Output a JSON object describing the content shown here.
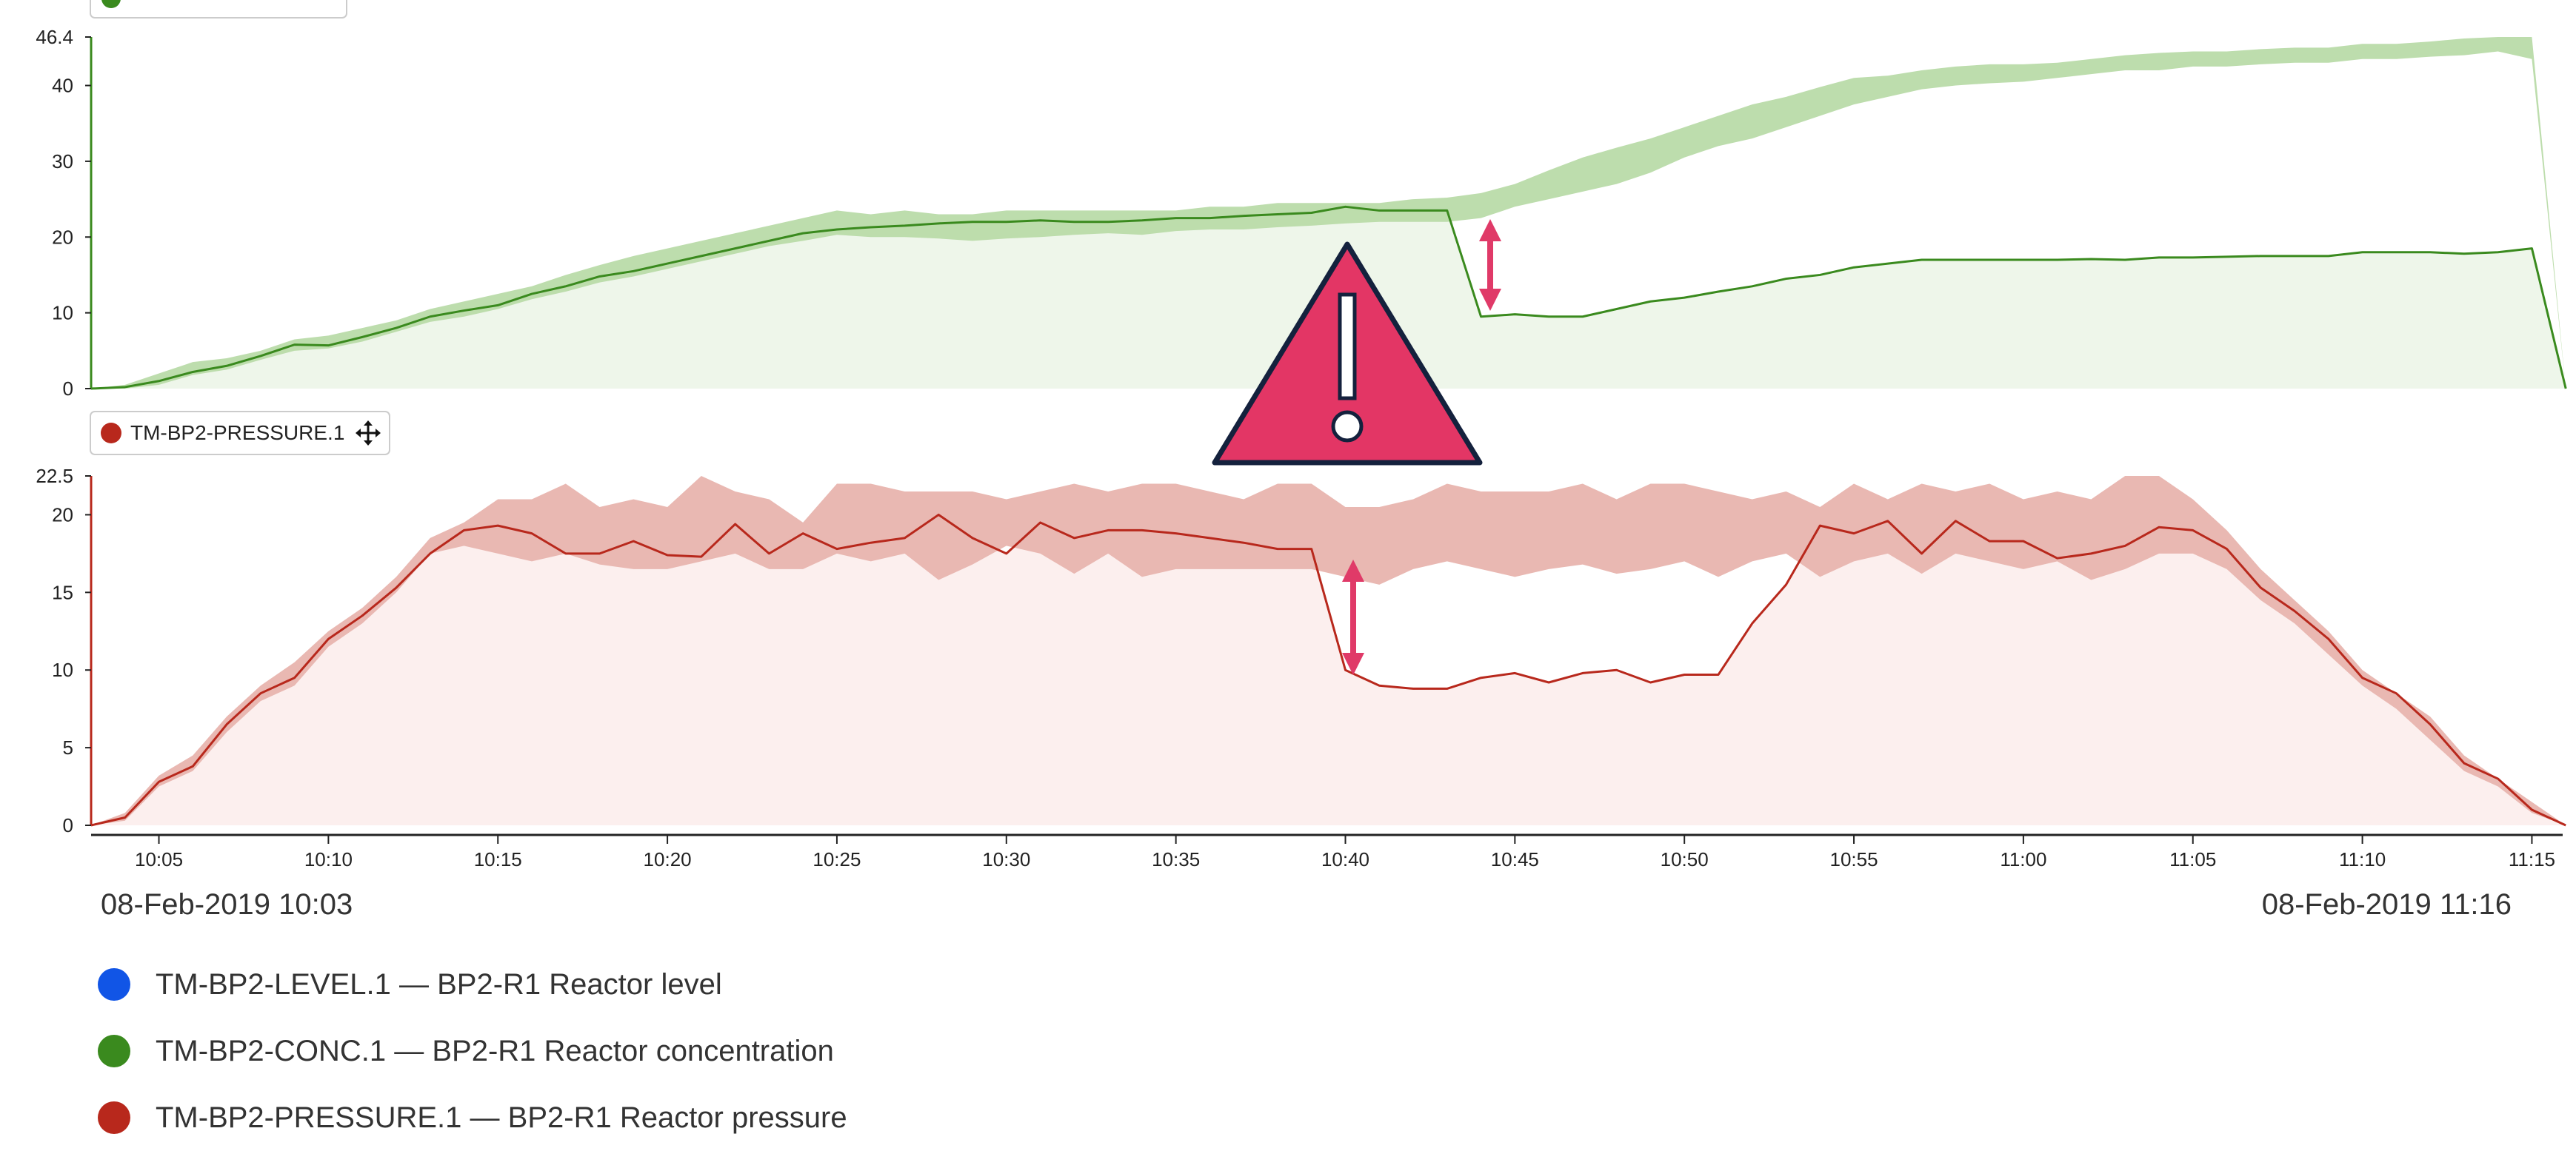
{
  "time_range": {
    "start": "08-Feb-2019 10:03",
    "end": "08-Feb-2019 11:16"
  },
  "legend": [
    {
      "label": "TM-BP2-LEVEL.1 — BP2-R1 Reactor level",
      "color": "#1155e6"
    },
    {
      "label": "TM-BP2-CONC.1 — BP2-R1 Reactor concentration",
      "color": "#3a8a1e"
    },
    {
      "label": "TM-BP2-PRESSURE.1 — BP2-R1 Reactor pressure",
      "color": "#b8281c"
    }
  ],
  "tags": {
    "pressure": "TM-BP2-PRESSURE.1"
  },
  "alert_icon": "warning-triangle-icon",
  "chart_data": [
    {
      "type": "area",
      "name": "concentration",
      "ylim": [
        0,
        46.4
      ],
      "yticks": [
        0,
        10,
        20,
        30,
        40,
        46.4
      ],
      "colors": {
        "line": "#3a8a1e",
        "band": "#b9dba9",
        "fill": "#eef6ea"
      },
      "x": [
        "10:03",
        "10:04",
        "10:05",
        "10:06",
        "10:07",
        "10:08",
        "10:09",
        "10:10",
        "10:11",
        "10:12",
        "10:13",
        "10:14",
        "10:15",
        "10:16",
        "10:17",
        "10:18",
        "10:19",
        "10:20",
        "10:21",
        "10:22",
        "10:23",
        "10:24",
        "10:25",
        "10:26",
        "10:27",
        "10:28",
        "10:29",
        "10:30",
        "10:31",
        "10:32",
        "10:33",
        "10:34",
        "10:35",
        "10:36",
        "10:37",
        "10:38",
        "10:39",
        "10:40",
        "10:41",
        "10:42",
        "10:43",
        "10:44",
        "10:45",
        "10:46",
        "10:47",
        "10:48",
        "10:49",
        "10:50",
        "10:51",
        "10:52",
        "10:53",
        "10:54",
        "10:55",
        "10:56",
        "10:57",
        "10:58",
        "10:59",
        "11:00",
        "11:01",
        "11:02",
        "11:03",
        "11:04",
        "11:05",
        "11:06",
        "11:07",
        "11:08",
        "11:09",
        "11:10",
        "11:11",
        "11:12",
        "11:13",
        "11:14",
        "11:15",
        "11:16"
      ],
      "values": [
        0,
        0.2,
        1,
        2.2,
        3,
        4.3,
        5.8,
        5.7,
        6.8,
        8,
        9.5,
        10.3,
        11,
        12.5,
        13.5,
        14.8,
        15.5,
        16.5,
        17.5,
        18.5,
        19.5,
        20.5,
        21,
        21.3,
        21.5,
        21.8,
        22,
        22,
        22.2,
        22,
        22,
        22.2,
        22.5,
        22.5,
        22.8,
        23,
        23.2,
        24,
        23.5,
        23.5,
        23.5,
        9.5,
        9.8,
        9.5,
        9.5,
        10.5,
        11.5,
        12,
        12.8,
        13.5,
        14.5,
        15,
        16,
        16.5,
        17,
        17,
        17,
        17,
        17,
        17.1,
        17,
        17.3,
        17.3,
        17.4,
        17.5,
        17.5,
        17.5,
        18,
        18,
        18,
        17.8,
        18,
        18.5,
        0
      ],
      "band_upper": [
        0,
        0.5,
        2,
        3.5,
        4,
        5,
        6.5,
        7,
        8,
        9,
        10.5,
        11.5,
        12.5,
        13.5,
        15,
        16.3,
        17.5,
        18.5,
        19.5,
        20.5,
        21.5,
        22.5,
        23.5,
        23,
        23.5,
        23,
        23,
        23.5,
        23.5,
        23.5,
        23.5,
        23.5,
        23.5,
        24,
        24,
        24.5,
        24.5,
        24.5,
        24.5,
        25,
        25.2,
        25.8,
        27,
        28.8,
        30.5,
        31.8,
        33,
        34.5,
        36,
        37.5,
        38.5,
        39.8,
        41,
        41.3,
        42,
        42.5,
        42.8,
        42.8,
        43,
        43.5,
        44,
        44.3,
        44.5,
        44.5,
        44.8,
        45,
        45,
        45.5,
        45.5,
        45.8,
        46.2,
        46.4,
        46.4,
        0
      ],
      "band_lower": [
        0,
        0,
        0.5,
        1.8,
        2.5,
        3.8,
        5,
        5.3,
        6.2,
        7.5,
        8.8,
        9.5,
        10.5,
        11.8,
        12.8,
        14,
        14.8,
        15.8,
        16.8,
        17.8,
        18.8,
        19.5,
        20.3,
        20,
        20,
        19.8,
        19.5,
        19.8,
        20,
        20.3,
        20.5,
        20.3,
        20.8,
        21,
        21,
        21.3,
        21.5,
        21.8,
        22,
        22,
        22,
        22.5,
        24,
        25,
        26,
        27,
        28.5,
        30.5,
        32,
        33,
        34.5,
        36,
        37.5,
        38.5,
        39.5,
        40,
        40.3,
        40.5,
        41,
        41.5,
        42,
        42,
        42.5,
        42.5,
        42.8,
        43,
        43,
        43.5,
        43.5,
        43.8,
        44,
        44.5,
        43.5,
        0
      ]
    },
    {
      "type": "area",
      "name": "pressure",
      "ylim": [
        0,
        22.5
      ],
      "yticks": [
        0,
        5,
        10,
        15,
        20,
        22.5
      ],
      "colors": {
        "line": "#b8281c",
        "band": "#e8b4ae",
        "fill": "#fcefee"
      },
      "x": [
        "10:03",
        "10:04",
        "10:05",
        "10:06",
        "10:07",
        "10:08",
        "10:09",
        "10:10",
        "10:11",
        "10:12",
        "10:13",
        "10:14",
        "10:15",
        "10:16",
        "10:17",
        "10:18",
        "10:19",
        "10:20",
        "10:21",
        "10:22",
        "10:23",
        "10:24",
        "10:25",
        "10:26",
        "10:27",
        "10:28",
        "10:29",
        "10:30",
        "10:31",
        "10:32",
        "10:33",
        "10:34",
        "10:35",
        "10:36",
        "10:37",
        "10:38",
        "10:39",
        "10:40",
        "10:41",
        "10:42",
        "10:43",
        "10:44",
        "10:45",
        "10:46",
        "10:47",
        "10:48",
        "10:49",
        "10:50",
        "10:51",
        "10:52",
        "10:53",
        "10:54",
        "10:55",
        "10:56",
        "10:57",
        "10:58",
        "10:59",
        "11:00",
        "11:01",
        "11:02",
        "11:03",
        "11:04",
        "11:05",
        "11:06",
        "11:07",
        "11:08",
        "11:09",
        "11:10",
        "11:11",
        "11:12",
        "11:13",
        "11:14",
        "11:15",
        "11:16"
      ],
      "values": [
        0,
        0.5,
        2.8,
        3.8,
        6.5,
        8.5,
        9.5,
        12,
        13.5,
        15.3,
        17.5,
        19,
        19.3,
        18.8,
        17.5,
        17.5,
        18.3,
        17.4,
        17.3,
        19.4,
        17.5,
        18.8,
        17.8,
        18.2,
        18.5,
        20,
        18.5,
        17.5,
        19.5,
        18.5,
        19,
        19,
        18.8,
        18.5,
        18.2,
        17.8,
        17.8,
        10,
        9,
        8.8,
        8.8,
        9.5,
        9.8,
        9.2,
        9.8,
        10,
        9.2,
        9.7,
        9.7,
        13,
        15.5,
        19.3,
        18.8,
        19.6,
        17.5,
        19.6,
        18.3,
        18.3,
        17.2,
        17.5,
        18,
        19.2,
        19,
        17.8,
        15.3,
        13.8,
        12,
        9.5,
        8.5,
        6.5,
        4,
        3,
        1,
        0
      ],
      "band_upper": [
        0,
        0.8,
        3.2,
        4.5,
        7,
        9,
        10.5,
        12.5,
        14,
        16,
        18.5,
        19.5,
        21,
        21,
        22,
        20.5,
        21,
        20.5,
        22.5,
        21.5,
        21,
        19.5,
        22,
        22,
        21.5,
        21.5,
        21.5,
        21,
        21.5,
        22,
        21.5,
        22,
        22,
        21.5,
        21,
        22,
        22,
        20.5,
        20.5,
        21,
        22,
        21.5,
        21.5,
        21.5,
        22,
        21,
        22,
        22,
        21.5,
        21,
        21.5,
        20.5,
        22,
        21,
        22,
        21.5,
        22,
        21,
        21.5,
        21,
        22.5,
        22.5,
        21,
        19,
        16.5,
        14.5,
        12.5,
        10,
        8.5,
        7,
        4.5,
        3,
        1.5,
        0
      ],
      "band_lower": [
        0,
        0.3,
        2.5,
        3.5,
        6,
        8,
        9,
        11.5,
        13,
        15,
        17.5,
        18,
        17.5,
        17,
        17.5,
        16.8,
        16.5,
        16.5,
        17,
        17.5,
        16.5,
        16.5,
        17.5,
        17,
        17.5,
        15.8,
        16.8,
        18,
        17.5,
        16.2,
        17.5,
        16,
        16.5,
        16.5,
        16.5,
        16.5,
        16.5,
        16,
        15.5,
        16.5,
        17,
        16.5,
        16,
        16.5,
        16.8,
        16.2,
        16.5,
        17,
        16,
        17,
        17.5,
        16,
        17,
        17.5,
        16.2,
        17.5,
        17,
        16.5,
        17,
        15.8,
        16.5,
        17.5,
        17.5,
        16.5,
        14.5,
        13,
        11,
        9,
        7.5,
        5.5,
        3.5,
        2.5,
        0.8,
        0
      ]
    }
  ],
  "x_ticks": [
    "10:05",
    "10:10",
    "10:15",
    "10:20",
    "10:25",
    "10:30",
    "10:35",
    "10:40",
    "10:45",
    "10:50",
    "10:55",
    "11:00",
    "11:05",
    "11:10",
    "11:15"
  ]
}
